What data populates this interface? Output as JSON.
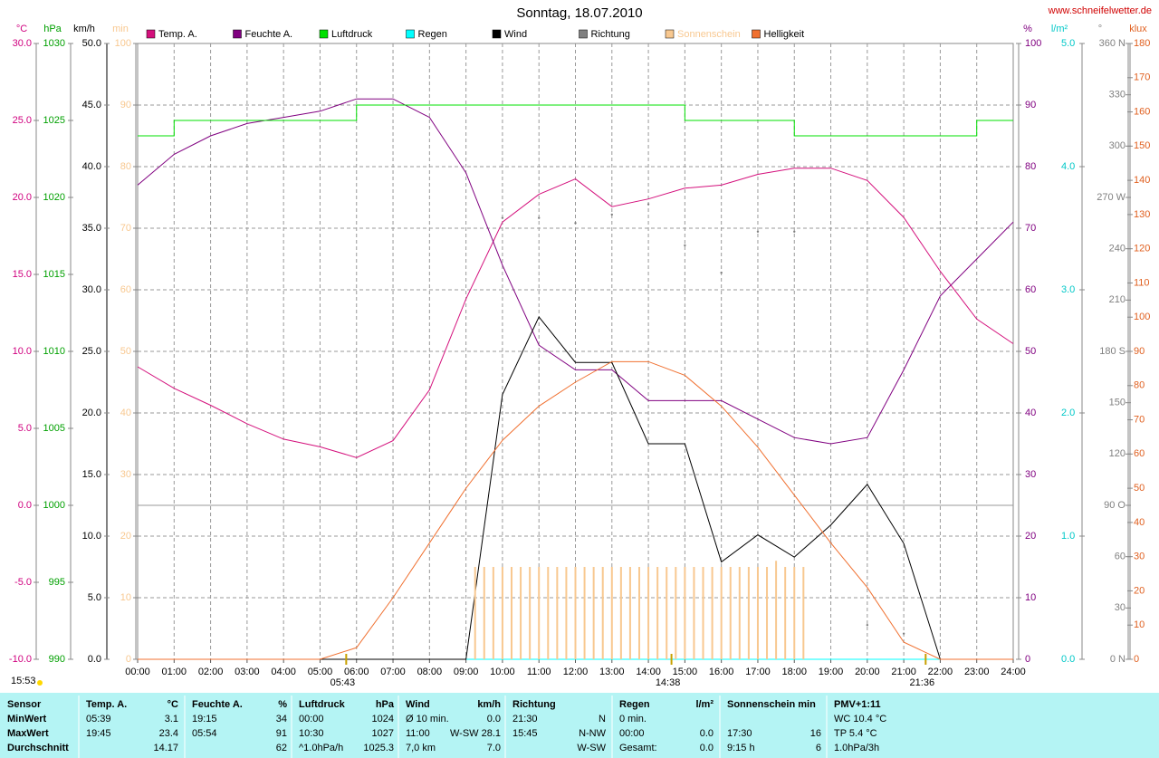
{
  "chart_data": {
    "type": "line",
    "title": "Sonntag, 18.07.2010",
    "site": "www.schneifelwetter.de",
    "updated": "15:53",
    "x": [
      0,
      1,
      2,
      3,
      4,
      5,
      6,
      7,
      8,
      9,
      10,
      11,
      12,
      13,
      14,
      15,
      16,
      17,
      18,
      19,
      20,
      21,
      22,
      23,
      24
    ],
    "xlim": [
      0,
      24
    ],
    "xticks": [
      {
        "value": 0,
        "label": "00:00"
      },
      {
        "value": 1,
        "label": "01:00"
      },
      {
        "value": 2,
        "label": "02:00"
      },
      {
        "value": 3,
        "label": "03:00"
      },
      {
        "value": 4,
        "label": "04:00"
      },
      {
        "value": 5,
        "label": "05:00"
      },
      {
        "value": 6,
        "label": "06:00"
      },
      {
        "value": 7,
        "label": "07:00"
      },
      {
        "value": 8,
        "label": "08:00"
      },
      {
        "value": 9,
        "label": "09:00"
      },
      {
        "value": 10,
        "label": "10:00"
      },
      {
        "value": 11,
        "label": "11:00"
      },
      {
        "value": 12,
        "label": "12:00"
      },
      {
        "value": 13,
        "label": "13:00"
      },
      {
        "value": 14,
        "label": "14:00"
      },
      {
        "value": 15,
        "label": "15:00"
      },
      {
        "value": 16,
        "label": "16:00"
      },
      {
        "value": 17,
        "label": "17:00"
      },
      {
        "value": 18,
        "label": "18:00"
      },
      {
        "value": 19,
        "label": "19:00"
      },
      {
        "value": 20,
        "label": "20:00"
      },
      {
        "value": 21,
        "label": "21:00"
      },
      {
        "value": 22,
        "label": "22:00"
      },
      {
        "value": 23,
        "label": "23:00"
      },
      {
        "value": 24,
        "label": "24:00"
      }
    ],
    "grid": true,
    "axes": [
      {
        "unit": "°C",
        "color": "#d0007f",
        "ylim": [
          -10,
          30
        ],
        "yticks": [
          {
            "value": 30,
            "label": "30.0"
          },
          {
            "value": 25,
            "label": "25.0"
          },
          {
            "value": 20,
            "label": "20.0"
          },
          {
            "value": 15,
            "label": "15.0"
          },
          {
            "value": 10,
            "label": "10.0"
          },
          {
            "value": 5,
            "label": "5.0"
          },
          {
            "value": 0,
            "label": "0.0"
          },
          {
            "value": -5,
            "label": "-5.0"
          },
          {
            "value": -10,
            "label": "-10.0"
          }
        ]
      },
      {
        "unit": "hPa",
        "color": "#00a000",
        "ylim": [
          990,
          1030
        ],
        "yticks": [
          1030,
          1025,
          1020,
          1015,
          1010,
          1005,
          1000,
          995,
          990
        ]
      },
      {
        "unit": "km/h",
        "color": "#000000",
        "ylim": [
          0,
          50
        ],
        "yticks": [
          {
            "value": 50,
            "label": "50.0"
          },
          {
            "value": 45,
            "label": "45.0"
          },
          {
            "value": 40,
            "label": "40.0"
          },
          {
            "value": 35,
            "label": "35.0"
          },
          {
            "value": 30,
            "label": "30.0"
          },
          {
            "value": 25,
            "label": "25.0"
          },
          {
            "value": 20,
            "label": "20.0"
          },
          {
            "value": 15,
            "label": "15.0"
          },
          {
            "value": 10,
            "label": "10.0"
          },
          {
            "value": 5,
            "label": "5.0"
          },
          {
            "value": 0,
            "label": "0.0"
          }
        ]
      },
      {
        "unit": "min",
        "color": "#f8c890",
        "ylim": [
          0,
          100
        ],
        "yticks": [
          100,
          90,
          80,
          70,
          60,
          50,
          40,
          30,
          20,
          10,
          0
        ]
      },
      {
        "unit": "%",
        "color": "#800080",
        "ylim": [
          0,
          100
        ],
        "yticks": [
          100,
          90,
          80,
          70,
          60,
          50,
          40,
          30,
          20,
          10,
          0
        ]
      },
      {
        "unit": "l/m²",
        "color": "#00c8c8",
        "ylim": [
          0,
          5
        ],
        "yticks": [
          {
            "value": 5,
            "label": "5.0"
          },
          {
            "value": 4,
            "label": "4.0"
          },
          {
            "value": 3,
            "label": "3.0"
          },
          {
            "value": 2,
            "label": "2.0"
          },
          {
            "value": 1,
            "label": "1.0"
          },
          {
            "value": 0,
            "label": "0.0"
          }
        ]
      },
      {
        "unit": "°",
        "color": "#808080",
        "ylim": [
          0,
          360
        ],
        "yticks": [
          {
            "value": 360,
            "label": "360 N"
          },
          330,
          300,
          {
            "value": 270,
            "label": "270 W"
          },
          240,
          210,
          {
            "value": 180,
            "label": "180 S"
          },
          150,
          120,
          {
            "value": 90,
            "label": "90 O"
          },
          60,
          30,
          {
            "value": 0,
            "label": "0 N"
          }
        ]
      },
      {
        "unit": "klux",
        "color": "#e06020",
        "ylim": [
          0,
          180
        ],
        "yticks": [
          180,
          170,
          160,
          150,
          140,
          130,
          120,
          110,
          100,
          90,
          80,
          70,
          60,
          50,
          40,
          30,
          20,
          10,
          0
        ]
      }
    ],
    "series": [
      {
        "name": "Temp. A.",
        "color": "#d4107c",
        "axis": 0,
        "kind": "line",
        "values": [
          9.0,
          7.6,
          6.5,
          5.3,
          4.3,
          3.8,
          3.1,
          4.2,
          7.5,
          13.4,
          18.4,
          20.2,
          21.2,
          19.4,
          19.9,
          20.6,
          20.8,
          21.5,
          21.9,
          21.9,
          21.1,
          18.7,
          15.2,
          12.1,
          10.5
        ]
      },
      {
        "name": "Feuchte A.",
        "color": "#800080",
        "axis": 4,
        "kind": "line",
        "values": [
          77,
          82,
          85,
          87,
          88,
          89,
          91,
          91,
          88,
          79,
          64,
          51,
          47,
          47,
          42,
          42,
          42,
          39,
          36,
          35,
          36,
          47,
          59,
          65,
          71
        ]
      },
      {
        "name": "Luftdruck",
        "color": "#00e000",
        "axis": 1,
        "kind": "step",
        "values": [
          1024,
          1025,
          1025,
          1025,
          1025,
          1025,
          1026,
          1026,
          1026,
          1026,
          1026,
          1026,
          1026,
          1026,
          1026,
          1025,
          1025,
          1025,
          1024,
          1024,
          1024,
          1024,
          1024,
          1025,
          1025
        ]
      },
      {
        "name": "Regen",
        "color": "#00ffff",
        "axis": 5,
        "kind": "line",
        "values": [
          0,
          0,
          0,
          0,
          0,
          0,
          0,
          0,
          0,
          0,
          0,
          0,
          0,
          0,
          0,
          0,
          0,
          0,
          0,
          0,
          0,
          0,
          0,
          0,
          0
        ]
      },
      {
        "name": "Wind",
        "color": "#000000",
        "axis": 2,
        "kind": "line",
        "values": [
          0,
          0,
          0,
          0,
          0,
          0,
          0,
          0,
          0,
          0,
          21.5,
          27.8,
          24.1,
          24.1,
          17.5,
          17.5,
          7.9,
          10.1,
          8.3,
          10.9,
          14.2,
          9.4,
          0,
          null,
          null
        ]
      },
      {
        "name": "Richtung",
        "color": "#808080",
        "axis": 6,
        "kind": "dots",
        "values": [
          null,
          null,
          null,
          null,
          null,
          null,
          null,
          null,
          null,
          null,
          258,
          258,
          255,
          260,
          266,
          242,
          226,
          250,
          250,
          68,
          20,
          15,
          null,
          null,
          null
        ]
      },
      {
        "name": "Sonnenschein",
        "color": "#f8c890",
        "axis": 3,
        "kind": "bars",
        "x": [
          9.25,
          9.5,
          9.75,
          10,
          10.25,
          10.5,
          10.75,
          11,
          11.25,
          11.5,
          11.75,
          12,
          12.25,
          12.5,
          12.75,
          13,
          13.25,
          13.5,
          13.75,
          14,
          14.25,
          14.5,
          14.75,
          15,
          15.25,
          15.5,
          15.75,
          16,
          16.25,
          16.5,
          16.75,
          17,
          17.25,
          17.5,
          17.75,
          18,
          18.25
        ],
        "values": [
          15,
          15,
          15,
          15,
          15,
          15,
          15,
          15,
          15,
          15,
          15,
          15,
          15,
          15,
          15,
          15,
          15,
          15,
          15,
          15,
          15,
          15,
          15,
          15,
          15,
          15,
          15,
          15,
          15,
          15,
          15,
          15,
          15,
          16,
          15,
          15,
          15
        ]
      },
      {
        "name": "Helligkeit",
        "color": "#f07030",
        "axis": 7,
        "kind": "line",
        "values": [
          0,
          0,
          0,
          0,
          0,
          0,
          3.4,
          18,
          34,
          50,
          64,
          74,
          81,
          87,
          87,
          83,
          74,
          62,
          48,
          34,
          21,
          5,
          0,
          0,
          0
        ]
      }
    ],
    "annotations": [
      {
        "value": 5.717,
        "label": "05:43"
      },
      {
        "value": 14.633,
        "label": "14:38"
      },
      {
        "value": 21.6,
        "label": "21:36"
      }
    ]
  },
  "summary_table": {
    "header": [
      "Sensor",
      "Temp. A.",
      "°C",
      "Feuchte A.",
      "%",
      "Luftdruck",
      "hPa",
      "Wind",
      "km/h",
      "Richtung",
      null,
      "Regen",
      "l/m²",
      "Sonnenschein min",
      null,
      "PMV+1:11"
    ],
    "rows": [
      [
        "MinWert",
        "05:39",
        "3.1",
        "19:15",
        "34",
        "00:00",
        "1024",
        "Ø 10 min.",
        "0.0",
        "21:30",
        "N",
        "0 min.",
        null,
        null,
        null,
        "WC 10.4 °C"
      ],
      [
        "MaxWert",
        "19:45",
        "23.4",
        "05:54",
        "91",
        "10:30",
        "1027",
        "11:00",
        "W-SW 28.1",
        "15:45",
        "N-NW",
        "00:00",
        "0.0",
        "17:30",
        "16",
        "TP 5.4 °C"
      ],
      [
        "Durchschnitt",
        null,
        "14.17",
        null,
        "62",
        "^1.0hPa/h",
        "1025.3",
        "7,0 km",
        "7.0",
        null,
        "W-SW",
        "Gesamt:",
        "0.0",
        "9:15 h",
        "6",
        "1.0hPa/3h"
      ]
    ]
  }
}
